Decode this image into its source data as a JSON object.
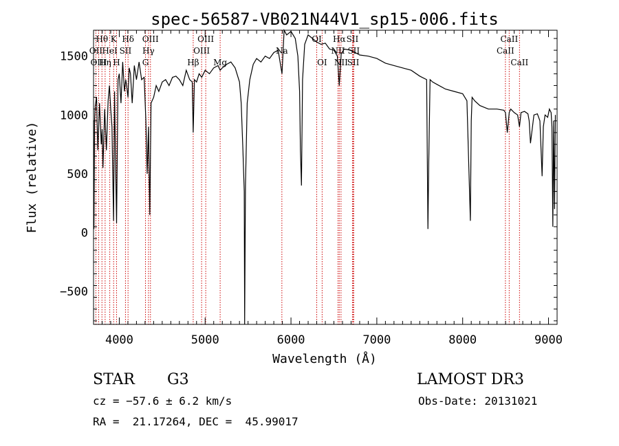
{
  "chart_data": {
    "type": "line",
    "title": "spec-56587-VB021N44V1_sp15-006.fits",
    "xlabel": "Wavelength (Å)",
    "ylabel": "Flux (relative)",
    "xlim": [
      3700,
      9100
    ],
    "ylim": [
      -780,
      1720
    ],
    "xticks": [
      4000,
      5000,
      6000,
      7000,
      8000,
      9000
    ],
    "yticks": [
      -500,
      0,
      500,
      1000,
      1500
    ],
    "grid": false,
    "spectrum": {
      "wavelength": [
        3700,
        3705,
        3712,
        3720,
        3735,
        3750,
        3770,
        3790,
        3800,
        3810,
        3830,
        3850,
        3870,
        3885,
        3900,
        3915,
        3933,
        3945,
        3955,
        3968,
        3985,
        4000,
        4020,
        4040,
        4060,
        4075,
        4085,
        4101,
        4115,
        4130,
        4150,
        4175,
        4200,
        4230,
        4260,
        4290,
        4310,
        4325,
        4340,
        4355,
        4370,
        4400,
        4430,
        4460,
        4500,
        4540,
        4580,
        4620,
        4660,
        4700,
        4740,
        4780,
        4820,
        4850,
        4861,
        4875,
        4900,
        4930,
        4960,
        5000,
        5050,
        5100,
        5150,
        5175,
        5200,
        5250,
        5300,
        5350,
        5400,
        5420,
        5440,
        5455,
        5460,
        5470,
        5490,
        5520,
        5560,
        5600,
        5650,
        5700,
        5750,
        5800,
        5850,
        5895,
        5900,
        5920,
        5950,
        6000,
        6050,
        6080,
        6100,
        6110,
        6122,
        6135,
        6160,
        6200,
        6250,
        6300,
        6350,
        6400,
        6450,
        6500,
        6540,
        6563,
        6585,
        6620,
        6700,
        6800,
        6900,
        7000,
        7100,
        7200,
        7300,
        7400,
        7500,
        7580,
        7595,
        7605,
        7620,
        7650,
        7700,
        7800,
        7900,
        8000,
        8050,
        8090,
        8100,
        8110,
        8140,
        8200,
        8300,
        8400,
        8480,
        8498,
        8520,
        8542,
        8560,
        8600,
        8640,
        8662,
        8680,
        8720,
        8760,
        8775,
        8790,
        8830,
        8870,
        8900,
        8925,
        8940,
        8960,
        8990,
        9010,
        9030,
        9040,
        9050,
        9060,
        9070,
        9080
      ],
      "flux": [
        950,
        30,
        950,
        1080,
        1150,
        700,
        1100,
        750,
        880,
        550,
        1050,
        700,
        1120,
        1250,
        1050,
        900,
        100,
        1200,
        700,
        80,
        1300,
        1350,
        1100,
        1450,
        1200,
        1300,
        1250,
        1150,
        1400,
        1350,
        1100,
        1420,
        1300,
        1450,
        1300,
        1320,
        950,
        500,
        900,
        150,
        1100,
        1150,
        1250,
        1200,
        1280,
        1300,
        1250,
        1320,
        1330,
        1300,
        1250,
        1380,
        1300,
        1280,
        850,
        1300,
        1280,
        1350,
        1320,
        1380,
        1350,
        1400,
        1420,
        1380,
        1400,
        1430,
        1450,
        1400,
        1280,
        1100,
        700,
        350,
        -780,
        400,
        1100,
        1300,
        1430,
        1480,
        1450,
        1500,
        1480,
        1530,
        1550,
        1350,
        1420,
        1720,
        1680,
        1710,
        1650,
        1500,
        1200,
        700,
        400,
        1300,
        1600,
        1680,
        1650,
        1620,
        1600,
        1610,
        1560,
        1550,
        1500,
        1250,
        1520,
        1560,
        1550,
        1510,
        1500,
        1480,
        1440,
        1420,
        1400,
        1380,
        1330,
        1300,
        30,
        600,
        1300,
        1280,
        1260,
        1220,
        1200,
        1180,
        1120,
        100,
        950,
        1150,
        1120,
        1080,
        1050,
        1050,
        1040,
        1020,
        850,
        1020,
        1050,
        1020,
        1000,
        900,
        1020,
        1030,
        1010,
        950,
        760,
        1000,
        1010,
        950,
        480,
        900,
        1000,
        980,
        1050,
        1020,
        900,
        50,
        950,
        200,
        1000
      ]
    },
    "lines": [
      {
        "label": "Hθ",
        "wl": 3798,
        "row": 1
      },
      {
        "label": "OII",
        "wl": 3727,
        "row": 2
      },
      {
        "label": "OIII",
        "wl": 3760,
        "row": 3
      },
      {
        "label": "K",
        "wl": 3934,
        "row": 1
      },
      {
        "label": "HeI",
        "wl": 3889,
        "row": 2
      },
      {
        "label": "Hη",
        "wl": 3835,
        "row": 3
      },
      {
        "label": "Hδ",
        "wl": 4102,
        "row": 1
      },
      {
        "label": "SII",
        "wl": 4072,
        "row": 2
      },
      {
        "label": "H",
        "wl": 3968,
        "row": 3
      },
      {
        "label": "OIII",
        "wl": 4363,
        "row": 1
      },
      {
        "label": "Hγ",
        "wl": 4340,
        "row": 2
      },
      {
        "label": "G",
        "wl": 4305,
        "row": 3
      },
      {
        "label": "OIII",
        "wl": 5007,
        "row": 1
      },
      {
        "label": "OIII",
        "wl": 4959,
        "row": 2
      },
      {
        "label": "Hβ",
        "wl": 4861,
        "row": 3
      },
      {
        "label": "Mg",
        "wl": 5175,
        "row": 3
      },
      {
        "label": "Na",
        "wl": 5894,
        "row": 2
      },
      {
        "label": "OI",
        "wl": 6300,
        "row": 1
      },
      {
        "label": "OI",
        "wl": 6363,
        "row": 3
      },
      {
        "label": "Hα",
        "wl": 6563,
        "row": 1
      },
      {
        "label": "NII",
        "wl": 6548,
        "row": 2
      },
      {
        "label": "NII",
        "wl": 6583,
        "row": 3
      },
      {
        "label": "SII",
        "wl": 6716,
        "row": 1
      },
      {
        "label": "SII",
        "wl": 6731,
        "row": 2
      },
      {
        "label": "SII",
        "wl": 6725,
        "row": 3
      },
      {
        "label": "CaII",
        "wl": 8542,
        "row": 1
      },
      {
        "label": "CaII",
        "wl": 8498,
        "row": 2
      },
      {
        "label": "CaII",
        "wl": 8662,
        "row": 3
      }
    ]
  },
  "info": {
    "class_label": "STAR",
    "subclass": "G3",
    "survey": "LAMOST DR3",
    "cz_text": "cz = −57.6 ± 6.2 km/s",
    "obs_date_text": "Obs-Date: 20131021",
    "radec_text": "RA =  21.17264, DEC =  45.99017"
  },
  "colors": {
    "line_marker": "#cc0000",
    "spectrum": "#000000"
  }
}
